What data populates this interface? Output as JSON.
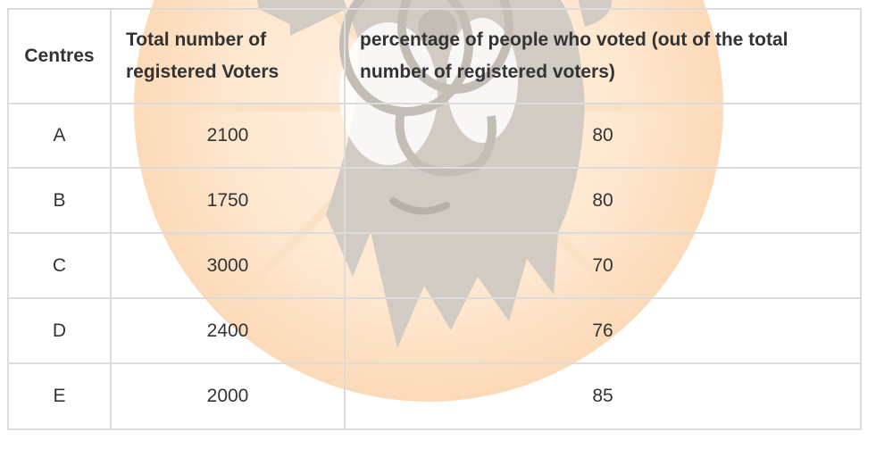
{
  "table": {
    "headers": {
      "centres": "Centres",
      "total": "Total number of registered Voters",
      "percentage": "percentage of people who voted (out of the total number of registered voters)"
    },
    "rows": [
      {
        "centre": "A",
        "total": "2100",
        "percentage": "80"
      },
      {
        "centre": "B",
        "total": "1750",
        "percentage": "80"
      },
      {
        "centre": "C",
        "total": "3000",
        "percentage": "70"
      },
      {
        "centre": "D",
        "total": "2400",
        "percentage": "76"
      },
      {
        "centre": "E",
        "total": "2000",
        "percentage": "85"
      }
    ]
  },
  "colors": {
    "border": "#dcdcdc",
    "text": "#333333",
    "watermark_orange": "#fde2c4",
    "watermark_gray": "#d2cbc3"
  }
}
